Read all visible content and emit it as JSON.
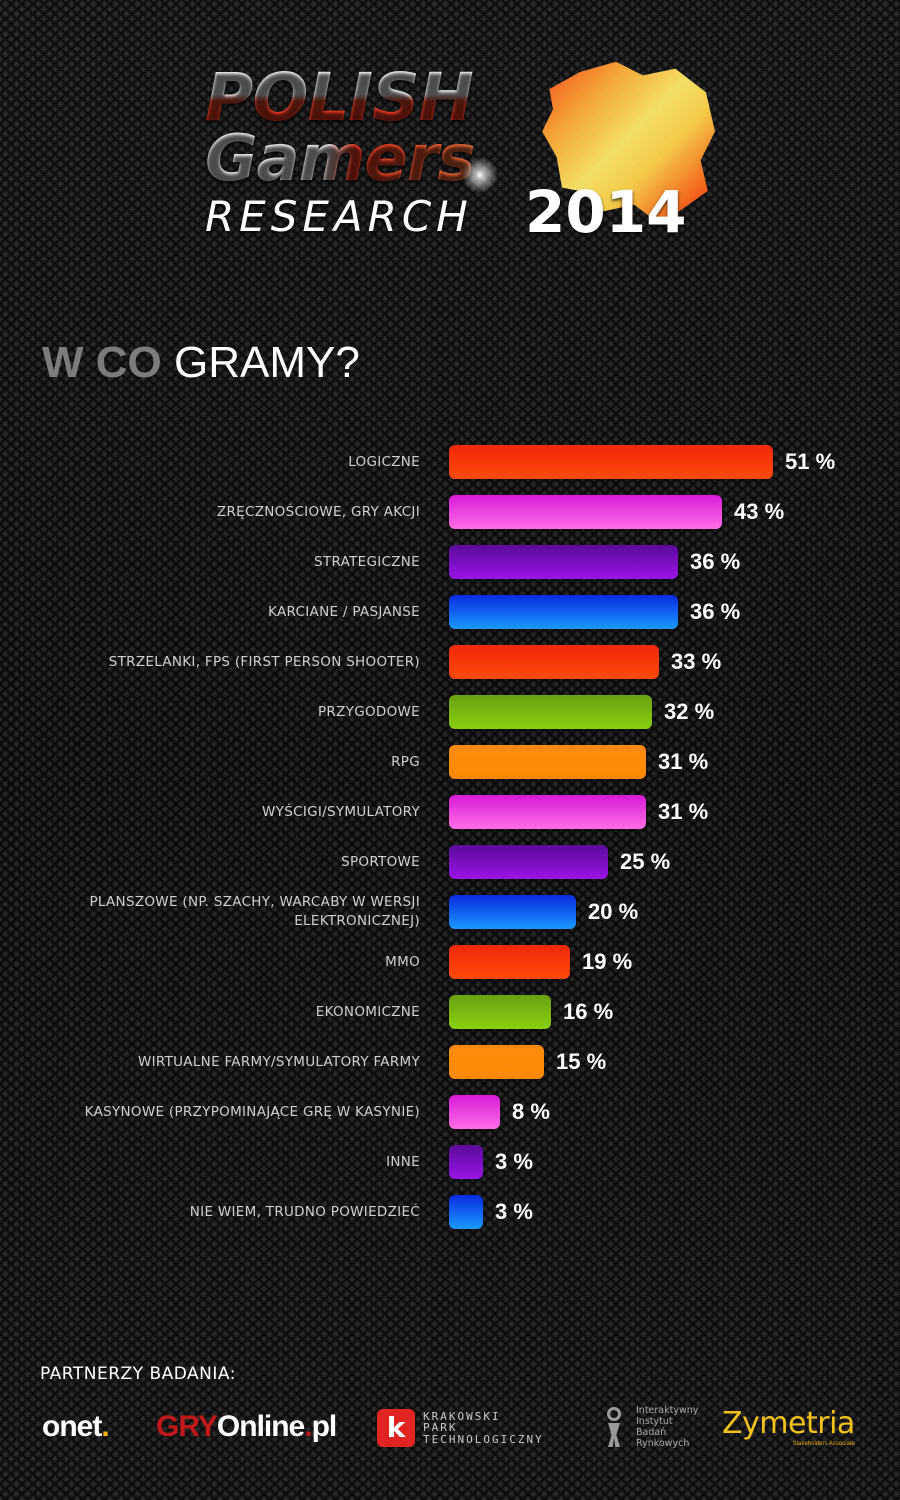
{
  "header": {
    "logo_line1": "POLISH",
    "logo_line2": "Gamers",
    "logo_line3": "RESEARCH",
    "logo_year": "2014"
  },
  "section": {
    "title_muted": "W CO",
    "title_bright": "GRAMY?"
  },
  "colors": {
    "red": "#f5380a",
    "pink": "#f048e0",
    "purple": "#7a10c8",
    "blue": "#1060f0",
    "green": "#7ab810",
    "orange": "#ff8a08",
    "background": "#121212",
    "label": "#cfcfcf"
  },
  "chart_data": {
    "type": "bar",
    "orientation": "horizontal",
    "title": "W CO GRAMY?",
    "xlabel": "",
    "ylabel": "",
    "unit": "%",
    "xlim": [
      0,
      51
    ],
    "grid": false,
    "legend": null,
    "categories": [
      "Logiczne",
      "Zręcznościowe, gry akcji",
      "Strategiczne",
      "Karciane / pasjanse",
      "Strzelanki, FPS (First Person Shooter)",
      "Przygodowe",
      "RPG",
      "Wyścigi/symulatory",
      "Sportowe",
      "Planszowe (np. szachy, warcaby w wersji elektronicznej)",
      "MMO",
      "Ekonomiczne",
      "Wirtualne farmy/symulatory farmy",
      "Kasynowe (przypominające grę w kasynie)",
      "Inne",
      "Nie wiem, trudno powiedzieć"
    ],
    "values": [
      51,
      43,
      36,
      36,
      33,
      32,
      31,
      31,
      25,
      20,
      19,
      16,
      15,
      8,
      3,
      3
    ],
    "bar_colors": [
      "red",
      "pink",
      "purple",
      "blue",
      "red",
      "green",
      "orange",
      "pink",
      "purple",
      "blue",
      "red",
      "green",
      "orange",
      "pink",
      "purple",
      "blue"
    ]
  },
  "rows": [
    {
      "label": "Logiczne",
      "value_label": "51 %"
    },
    {
      "label": "Zręcznościowe, gry akcji",
      "value_label": "43 %"
    },
    {
      "label": "Strategiczne",
      "value_label": "36 %"
    },
    {
      "label": "Karciane / pasjanse",
      "value_label": "36 %"
    },
    {
      "label": "strzelanki, FPS (First Person Shooter)",
      "value_label": "33 %"
    },
    {
      "label": "Przygodowe",
      "value_label": "32 %"
    },
    {
      "label": "RPG",
      "value_label": "31 %"
    },
    {
      "label": "Wyścigi/symulatory",
      "value_label": "31 %"
    },
    {
      "label": "Sportowe",
      "value_label": "25 %"
    },
    {
      "label": "Planszowe (np. szachy, warcaby w wersji elektronicznej)",
      "value_label": "20 %"
    },
    {
      "label": "MMO",
      "value_label": "19 %"
    },
    {
      "label": "Ekonomiczne",
      "value_label": "16 %"
    },
    {
      "label": "Wirtualne farmy/symulatory farmy",
      "value_label": "15 %"
    },
    {
      "label": "Kasynowe (przypominające grę w kasynie)",
      "value_label": "8 %"
    },
    {
      "label": "Inne",
      "value_label": "3 %"
    },
    {
      "label": "Nie wiem, trudno powiedzieć",
      "value_label": "3 %"
    }
  ],
  "partners": {
    "title": "Partnerzy badania:",
    "onet": {
      "name": "onet",
      "dot": "."
    },
    "gryonline": {
      "gry": "GRY",
      "online": "Online",
      "dot": ".",
      "tld": "pl"
    },
    "kpt": {
      "icon_letter": "k",
      "line1": "Krakowski",
      "line2": "Park",
      "line3": "Technologiczny"
    },
    "iibr": {
      "line1": "Interaktywny",
      "line2": "Instytut",
      "line3": "Badań",
      "line4": "Rynkowych"
    },
    "zymetria": {
      "name": "Zymetria",
      "subtitle": "Stakeholders Associate"
    }
  }
}
